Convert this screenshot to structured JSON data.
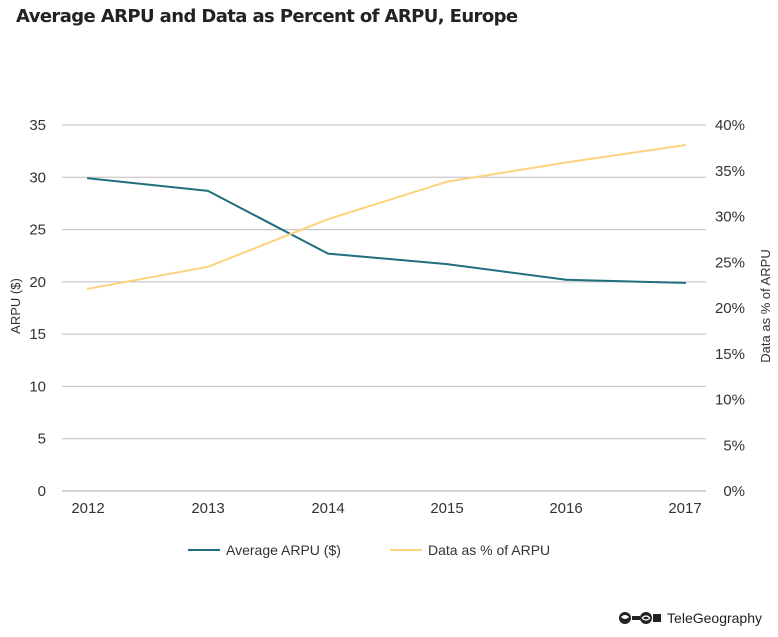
{
  "title": "Average ARPU and Data as Percent of ARPU, Europe",
  "brand": {
    "name": "TeleGeography",
    "icon": "telegeography-logo-icon"
  },
  "chart_data": {
    "type": "line",
    "title": "Average ARPU and Data as Percent of ARPU, Europe",
    "x": [
      "2012",
      "2013",
      "2014",
      "2015",
      "2016",
      "2017"
    ],
    "y_left": {
      "label": "ARPU ($)",
      "range": [
        0,
        35
      ],
      "ticks": [
        "0",
        "5",
        "10",
        "15",
        "20",
        "25",
        "30",
        "35"
      ]
    },
    "y_right": {
      "label": "Data as % of ARPU",
      "range": [
        0,
        40
      ],
      "ticks": [
        "0%",
        "5%",
        "10%",
        "15%",
        "20%",
        "25%",
        "30%",
        "35%",
        "40%"
      ]
    },
    "series": [
      {
        "name": "Average ARPU ($)",
        "axis": "left",
        "color": "#1f6f80",
        "values": [
          29.9,
          28.7,
          22.7,
          21.7,
          20.2,
          19.9
        ]
      },
      {
        "name": "Data as % of ARPU",
        "axis": "right",
        "color": "#fcd37d",
        "values": [
          22.1,
          24.5,
          29.7,
          33.8,
          35.9,
          37.8
        ]
      }
    ],
    "grid": true,
    "legend": "bottom"
  }
}
